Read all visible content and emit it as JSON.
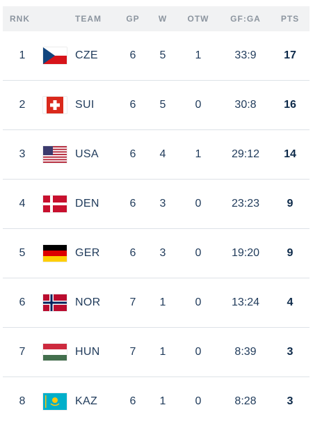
{
  "header": {
    "rank": "RNK",
    "team": "TEAM",
    "gp": "GP",
    "w": "W",
    "otw": "OTW",
    "gfga": "GF:GA",
    "pts": "PTS"
  },
  "rows": [
    {
      "rank": "1",
      "flag_icon": "czech-flag-icon",
      "team": "CZE",
      "gp": "6",
      "w": "5",
      "otw": "1",
      "gfga": "33:9",
      "pts": "17"
    },
    {
      "rank": "2",
      "flag_icon": "swiss-flag-icon",
      "team": "SUI",
      "gp": "6",
      "w": "5",
      "otw": "0",
      "gfga": "30:8",
      "pts": "16"
    },
    {
      "rank": "3",
      "flag_icon": "usa-flag-icon",
      "team": "USA",
      "gp": "6",
      "w": "4",
      "otw": "1",
      "gfga": "29:12",
      "pts": "14"
    },
    {
      "rank": "4",
      "flag_icon": "danish-flag-icon",
      "team": "DEN",
      "gp": "6",
      "w": "3",
      "otw": "0",
      "gfga": "23:23",
      "pts": "9"
    },
    {
      "rank": "5",
      "flag_icon": "german-flag-icon",
      "team": "GER",
      "gp": "6",
      "w": "3",
      "otw": "0",
      "gfga": "19:20",
      "pts": "9"
    },
    {
      "rank": "6",
      "flag_icon": "norway-flag-icon",
      "team": "NOR",
      "gp": "7",
      "w": "1",
      "otw": "0",
      "gfga": "13:24",
      "pts": "4"
    },
    {
      "rank": "7",
      "flag_icon": "hungary-flag-icon",
      "team": "HUN",
      "gp": "7",
      "w": "1",
      "otw": "0",
      "gfga": "8:39",
      "pts": "3"
    },
    {
      "rank": "8",
      "flag_icon": "kazakhstan-flag-icon",
      "team": "KAZ",
      "gp": "6",
      "w": "1",
      "otw": "0",
      "gfga": "8:28",
      "pts": "3"
    }
  ],
  "colors": {
    "text": "#1f3a5a",
    "header_text": "#8c959f",
    "header_bg": "#f1f2f3",
    "divider": "#dde2e7"
  }
}
